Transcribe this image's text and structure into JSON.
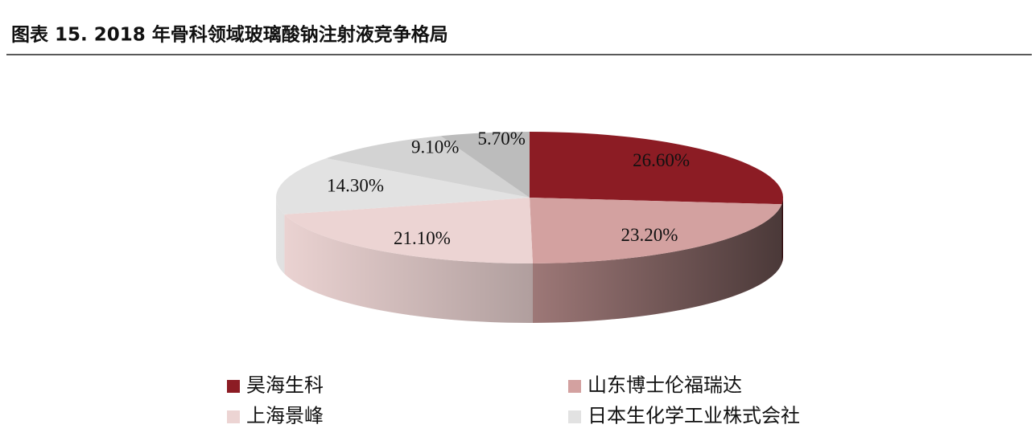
{
  "chart_data": {
    "type": "pie",
    "title": "图表 15. 2018 年骨科领域玻璃酸钠注射液竞争格局",
    "categories": [
      "昊海生科",
      "山东博士伦福瑞达",
      "上海景峰",
      "日本生化学工业株式会社",
      null,
      null
    ],
    "values": [
      26.6,
      23.2,
      21.1,
      14.3,
      9.1,
      5.7
    ],
    "value_labels": [
      "26.60%",
      "23.20%",
      "21.10%",
      "14.30%",
      "9.10%",
      "5.70%"
    ],
    "colors": [
      "#8c1c24",
      "#d3a1a0",
      "#ecd4d3",
      "#e2e2e2",
      "#d3d3d3",
      "#bcbcbc"
    ]
  }
}
